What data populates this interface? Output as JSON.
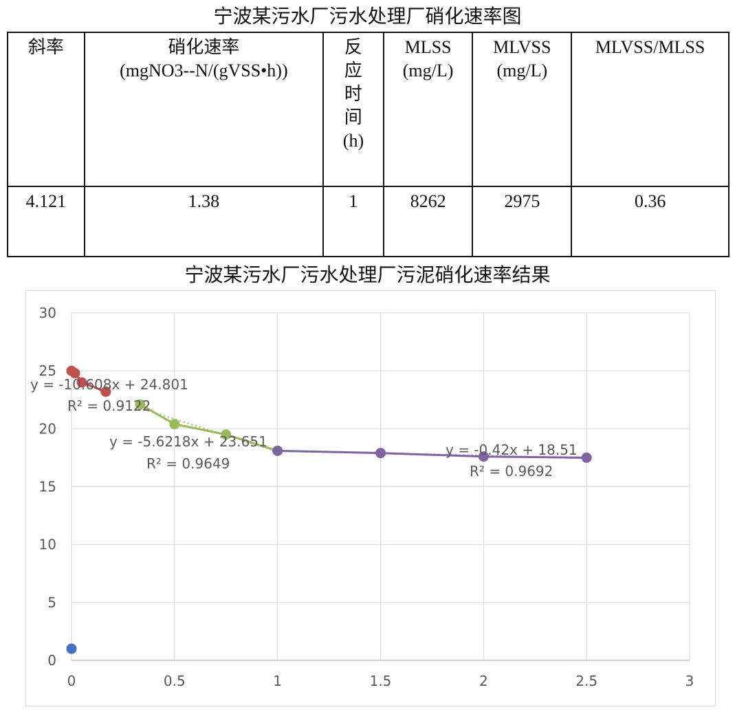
{
  "table_title": "宁波某污水厂污水处理厂硝化速率图",
  "table": {
    "headers": [
      {
        "label": "斜率",
        "unit": ""
      },
      {
        "label": "硝化速率",
        "unit": "(mgNO3--N/(gVSS•h))"
      },
      {
        "label": "反应时间(h)",
        "unit": ""
      },
      {
        "label": "MLSS",
        "unit": "(mg/L)"
      },
      {
        "label": "MLVSS",
        "unit": "(mg/L)"
      },
      {
        "label": "MLVSS/MLSS",
        "unit": ""
      }
    ],
    "rows": [
      [
        "4.121",
        "1.38",
        "1",
        "8262",
        "2975",
        "0.36"
      ]
    ]
  },
  "chart_title": "宁波某污水厂污水处理厂污泥硝化速率结果",
  "chart_data": {
    "type": "scatter",
    "title": "宁波某污水厂污水处理厂污泥硝化速率结果",
    "xlabel": "",
    "ylabel": "",
    "xlim": [
      0,
      3
    ],
    "ylim": [
      0,
      30
    ],
    "x_ticks": [
      0,
      0.5,
      1,
      1.5,
      2,
      2.5,
      3
    ],
    "x_tick_labels": [
      "0",
      "0.5",
      "1",
      "1.5",
      "2",
      "2.5",
      "3"
    ],
    "y_ticks": [
      0,
      5,
      10,
      15,
      20,
      25,
      30
    ],
    "y_tick_labels": [
      "0",
      "5",
      "10",
      "15",
      "20",
      "25",
      "30"
    ],
    "grid": true,
    "legend": "none",
    "series": [
      {
        "color": "#4472c4",
        "x": [
          0
        ],
        "y": [
          1.0
        ],
        "connected": false
      },
      {
        "color": "#c0504d",
        "x": [
          0,
          0.0167,
          0.05,
          0.1667
        ],
        "y": [
          25.0,
          24.8,
          24.0,
          23.2
        ],
        "connected": true
      },
      {
        "color": "#9bbb59",
        "x": [
          0.3333,
          0.5,
          0.75,
          1.0
        ],
        "y": [
          22.1,
          20.4,
          19.5,
          18.1
        ],
        "connected": true
      },
      {
        "color": "#8064a2",
        "x": [
          1.0,
          1.5,
          2.0,
          2.5
        ],
        "y": [
          18.1,
          17.9,
          17.6,
          17.5
        ],
        "connected": true
      }
    ],
    "trendlines": [
      {
        "color": "#c0504d",
        "slope": -10.608,
        "intercept": 24.801,
        "x_range": [
          0,
          0.1667
        ],
        "equation": "y = -10.608x + 24.801",
        "r2": "R² = 0.9122"
      },
      {
        "color": "#9bbb59",
        "slope": -5.6218,
        "intercept": 23.651,
        "x_range": [
          0.3333,
          1.0
        ],
        "equation": "y = -5.6218x + 23.651",
        "r2": "R² = 0.9649"
      },
      {
        "color": "#8064a2",
        "slope": -0.42,
        "intercept": 18.51,
        "x_range": [
          1.0,
          2.5
        ],
        "equation": "y = -0.42x + 18.51",
        "r2": "R² = 0.9692"
      }
    ]
  }
}
